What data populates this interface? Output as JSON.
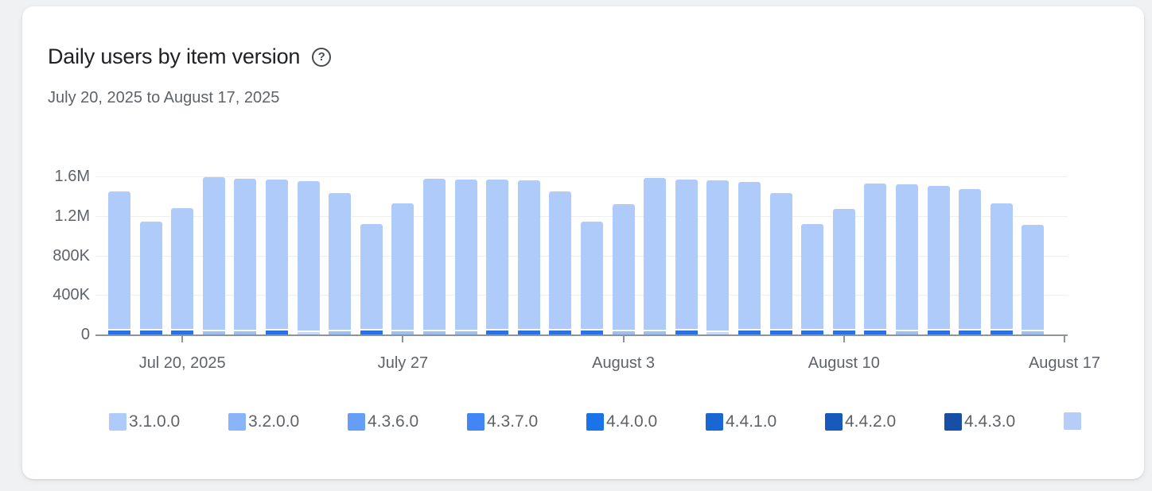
{
  "header": {
    "title": "Daily users by item version",
    "subtitle": "July 20, 2025 to August 17, 2025",
    "help_icon_glyph": "?"
  },
  "chart_data": {
    "type": "stacked-bar",
    "title": "Daily users by item version",
    "date_range": "July 20, 2025 to August 17, 2025",
    "y_axis": {
      "ticks": [
        {
          "label": "1.6M",
          "value": 1600000
        },
        {
          "label": "1.2M",
          "value": 1200000
        },
        {
          "label": "800K",
          "value": 800000
        },
        {
          "label": "400K",
          "value": 400000
        },
        {
          "label": "0",
          "value": 0
        }
      ],
      "max_value": 1600000,
      "grid": true
    },
    "x_axis": {
      "days_shown": 30,
      "ticks": [
        {
          "label": "Jul 20, 2025",
          "day_index": 2
        },
        {
          "label": "July 27",
          "day_index": 9
        },
        {
          "label": "August 3",
          "day_index": 16
        },
        {
          "label": "August 10",
          "day_index": 23
        },
        {
          "label": "August 17",
          "day_index": 30
        }
      ]
    },
    "legend": [
      {
        "label": "3.1.0.0",
        "color": "#aecbfa"
      },
      {
        "label": "3.2.0.0",
        "color": "#8ab4f8"
      },
      {
        "label": "4.3.6.0",
        "color": "#669df6"
      },
      {
        "label": "4.3.7.0",
        "color": "#4285f4"
      },
      {
        "label": "4.4.0.0",
        "color": "#1a73e8"
      },
      {
        "label": "4.4.1.0",
        "color": "#1967d2"
      },
      {
        "label": "4.4.2.0",
        "color": "#185abc"
      },
      {
        "label": "4.4.3.0",
        "color": "#174ea6"
      },
      {
        "label": "",
        "color": "#b5cdf7"
      }
    ],
    "body_color": "#aecbfa",
    "cap_colors": {
      "dark": "#2b72e0",
      "light": "#9dbff2",
      "vlight": "#c7d9fb"
    },
    "cap_users": {
      "dark": 42000,
      "light": 30000,
      "vlight": 26000
    },
    "bars": [
      {
        "total": 1450000,
        "cap": "dark"
      },
      {
        "total": 1140000,
        "cap": "dark"
      },
      {
        "total": 1280000,
        "cap": "dark"
      },
      {
        "total": 1590000,
        "cap": "light"
      },
      {
        "total": 1575000,
        "cap": "light"
      },
      {
        "total": 1570000,
        "cap": "dark"
      },
      {
        "total": 1555000,
        "cap": "vlight"
      },
      {
        "total": 1430000,
        "cap": "light"
      },
      {
        "total": 1120000,
        "cap": "dark"
      },
      {
        "total": 1330000,
        "cap": "light"
      },
      {
        "total": 1575000,
        "cap": "light"
      },
      {
        "total": 1570000,
        "cap": "light"
      },
      {
        "total": 1570000,
        "cap": "dark"
      },
      {
        "total": 1560000,
        "cap": "dark"
      },
      {
        "total": 1450000,
        "cap": "dark"
      },
      {
        "total": 1140000,
        "cap": "dark"
      },
      {
        "total": 1320000,
        "cap": "light"
      },
      {
        "total": 1580000,
        "cap": "light"
      },
      {
        "total": 1570000,
        "cap": "dark"
      },
      {
        "total": 1560000,
        "cap": "vlight"
      },
      {
        "total": 1540000,
        "cap": "dark"
      },
      {
        "total": 1430000,
        "cap": "dark"
      },
      {
        "total": 1120000,
        "cap": "dark"
      },
      {
        "total": 1270000,
        "cap": "dark"
      },
      {
        "total": 1525000,
        "cap": "dark"
      },
      {
        "total": 1520000,
        "cap": "light"
      },
      {
        "total": 1500000,
        "cap": "dark"
      },
      {
        "total": 1470000,
        "cap": "dark"
      },
      {
        "total": 1330000,
        "cap": "dark"
      },
      {
        "total": 1110000,
        "cap": "light"
      }
    ],
    "colors": {
      "grid": "#efefef",
      "axis": "#8f9499",
      "labels": "#5f6368",
      "title": "#202124",
      "card_background": "#ffffff",
      "page_background": "#eff1f2"
    }
  }
}
